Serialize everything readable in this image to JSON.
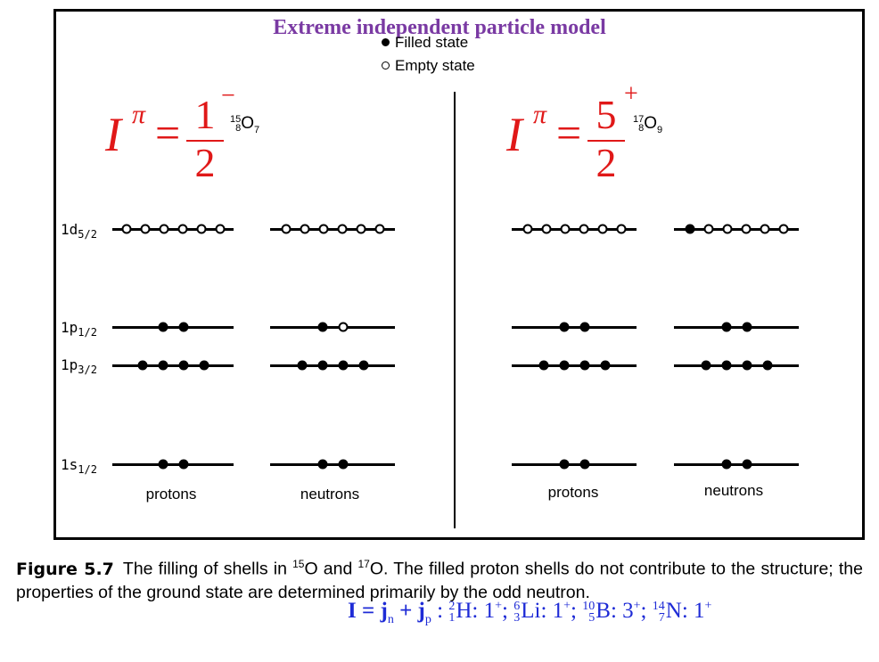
{
  "title": "Extreme independent particle model",
  "legend": {
    "filled": "Filled state",
    "empty": "Empty state"
  },
  "left": {
    "spin": {
      "I": "I",
      "pi": "π",
      "eq": "=",
      "numerator": "1",
      "denominator": "2",
      "parity": "−"
    },
    "nucleus": {
      "mass": "15",
      "charge": "8",
      "symbol": "O",
      "neutrons": "7"
    }
  },
  "right": {
    "spin": {
      "I": "I",
      "pi": "π",
      "eq": "=",
      "numerator": "5",
      "denominator": "2",
      "parity": "+"
    },
    "nucleus": {
      "mass": "17",
      "charge": "8",
      "symbol": "O",
      "neutrons": "9"
    }
  },
  "levels": [
    {
      "name": "1d",
      "sub": "5/2"
    },
    {
      "name": "1p",
      "sub": "1/2"
    },
    {
      "name": "1p",
      "sub": "3/2"
    },
    {
      "name": "1s",
      "sub": "1/2"
    }
  ],
  "occupancy": {
    "left_protons": {
      "d52": [
        0,
        0,
        0,
        0,
        0,
        0
      ],
      "p12": [
        1,
        1
      ],
      "p32": [
        1,
        1,
        1,
        1
      ],
      "s12": [
        1,
        1
      ]
    },
    "left_neutrons": {
      "d52": [
        0,
        0,
        0,
        0,
        0,
        0
      ],
      "p12": [
        1,
        0
      ],
      "p32": [
        1,
        1,
        1,
        1
      ],
      "s12": [
        1,
        1
      ]
    },
    "right_protons": {
      "d52": [
        0,
        0,
        0,
        0,
        0,
        0
      ],
      "p12": [
        1,
        1
      ],
      "p32": [
        1,
        1,
        1,
        1
      ],
      "s12": [
        1,
        1
      ]
    },
    "right_neutrons": {
      "d52": [
        1,
        0,
        0,
        0,
        0,
        0
      ],
      "p12": [
        1,
        1
      ],
      "p32": [
        1,
        1,
        1,
        1
      ],
      "s12": [
        1,
        1
      ]
    }
  },
  "group_labels": {
    "protons": "protons",
    "neutrons": "neutrons"
  },
  "caption": {
    "figure": "Figure 5.7",
    "text1": "The filling of shells in ",
    "iso1_mass": "15",
    "iso1_sym": "O and ",
    "iso2_mass": "17",
    "text2": "O. The filled proton shells do not contribute to the structure; the properties of the ground state are determined primarily by the odd neutron."
  },
  "formula": {
    "lhs": "I = j",
    "sub_n": "n",
    "plus": " + j",
    "sub_p": "p",
    "colon": " : ",
    "items": [
      {
        "mass": "2",
        "z": "1",
        "el": "H",
        "spin": "1",
        "par": "+"
      },
      {
        "mass": "6",
        "z": "3",
        "el": "Li",
        "spin": "1",
        "par": "+"
      },
      {
        "mass": "10",
        "z": "5",
        "el": "B",
        "spin": "3",
        "par": "+"
      },
      {
        "mass": "14",
        "z": "7",
        "el": "N",
        "spin": "1",
        "par": "+"
      }
    ]
  }
}
